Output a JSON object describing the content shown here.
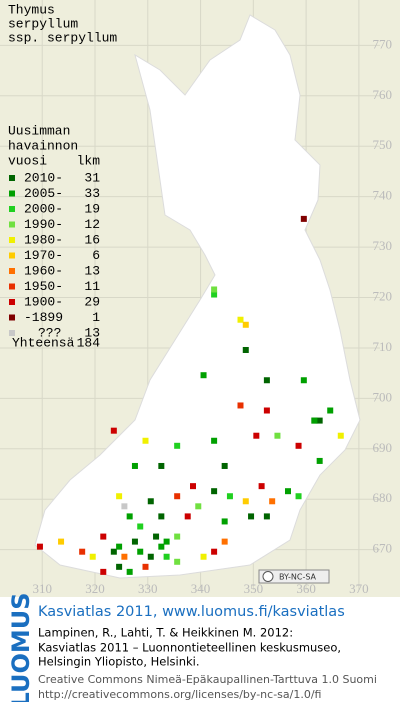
{
  "map": {
    "title": [
      "Thymus",
      "serpyllum",
      "ssp. serpyllum"
    ],
    "xlim": [
      302,
      374
    ],
    "ylim": [
      662,
      779
    ],
    "xticks": [
      310,
      320,
      330,
      340,
      350,
      360,
      370
    ],
    "yticks": [
      770,
      760,
      750,
      740,
      730,
      720,
      710,
      700,
      690,
      680,
      670
    ],
    "legend": {
      "heading": [
        "Uusimman",
        "havainnon",
        "vuosi"
      ],
      "count_heading": "lkm",
      "entries": [
        {
          "label": "2010-",
          "count": 31,
          "color": "#006400",
          "squares": [
            [
              348,
              709
            ],
            [
              352,
              703
            ],
            [
              361,
              695
            ],
            [
              362,
              695
            ],
            [
              332,
              686
            ],
            [
              344,
              686
            ],
            [
              342,
              681
            ],
            [
              330,
              679
            ],
            [
              332,
              676
            ],
            [
              349,
              676
            ],
            [
              352,
              676
            ],
            [
              331,
              672
            ],
            [
              323,
              669
            ],
            [
              330,
              668
            ],
            [
              324,
              666
            ],
            [
              327,
              671
            ]
          ]
        },
        {
          "label": "2005-",
          "count": 33,
          "color": "#00a000",
          "squares": [
            [
              340,
              704
            ],
            [
              359,
              703
            ],
            [
              364,
              697
            ],
            [
              361,
              695
            ],
            [
              342,
              691
            ],
            [
              362,
              687
            ],
            [
              327,
              686
            ],
            [
              356,
              681
            ],
            [
              326,
              676
            ],
            [
              344,
              675
            ],
            [
              333,
              671
            ],
            [
              328,
              669
            ],
            [
              326,
              665
            ],
            [
              324,
              670
            ],
            [
              332,
              670
            ]
          ]
        },
        {
          "label": "2000-",
          "count": 19,
          "color": "#20d020",
          "squares": [
            [
              342,
              720
            ],
            [
              335,
              690
            ],
            [
              345,
              680
            ],
            [
              358,
              680
            ],
            [
              328,
              674
            ],
            [
              333,
              668
            ]
          ]
        },
        {
          "label": "1990-",
          "count": 12,
          "color": "#70e040",
          "squares": [
            [
              342,
              721
            ],
            [
              354,
              692
            ],
            [
              339,
              678
            ],
            [
              335,
              672
            ],
            [
              335,
              667
            ]
          ]
        },
        {
          "label": "1980-",
          "count": 16,
          "color": "#f0f000",
          "squares": [
            [
              347,
              715
            ],
            [
              366,
              692
            ],
            [
              329,
              691
            ],
            [
              324,
              680
            ],
            [
              319,
              668
            ],
            [
              340,
              668
            ]
          ]
        },
        {
          "label": "1970-",
          "count": 6,
          "color": "#ffcc00",
          "squares": [
            [
              348,
              714
            ],
            [
              348,
              679
            ],
            [
              313,
              671
            ]
          ]
        },
        {
          "label": "1960-",
          "count": 13,
          "color": "#ff7000",
          "squares": [
            [
              353,
              679
            ],
            [
              325,
              668
            ],
            [
              344,
              671
            ]
          ]
        },
        {
          "label": "1950-",
          "count": 11,
          "color": "#e83000",
          "squares": [
            [
              347,
              698
            ],
            [
              335,
              680
            ],
            [
              317,
              669
            ],
            [
              329,
              666
            ]
          ]
        },
        {
          "label": "1900-",
          "count": 29,
          "color": "#cc0000",
          "squares": [
            [
              352,
              697
            ],
            [
              323,
              693
            ],
            [
              350,
              692
            ],
            [
              358,
              690
            ],
            [
              338,
              682
            ],
            [
              351,
              682
            ],
            [
              337,
              676
            ],
            [
              321,
              672
            ],
            [
              309,
              670
            ],
            [
              321,
              665
            ],
            [
              342,
              669
            ]
          ]
        },
        {
          "label": "-1899",
          "count": 1,
          "color": "#800000",
          "squares": [
            [
              359,
              735
            ]
          ]
        },
        {
          "label": "???",
          "count": 13,
          "color": "#c8c8c8",
          "squares": [
            [
              325,
              678
            ]
          ]
        }
      ],
      "total_label": "Yhteensä",
      "total": 184
    },
    "license_badge": "BY-NC-SA"
  },
  "footer": {
    "brand": "LUOMUS",
    "heading": "Kasviatlas 2011, www.luomus.fi/kasviatlas",
    "citation": [
      "Lampinen, R., Lahti, T. & Heikkinen M. 2012:",
      "Kasviatlas 2011 – Luonnontieteellinen keskusmuseo,",
      "Helsingin Yliopisto, Helsinki."
    ],
    "license": [
      "Creative Commons Nimeä-Epäkaupallinen-Tarttuva 1.0 Suomi",
      "http://creativecommons.org/licenses/by-nc-sa/1.0/fi"
    ]
  }
}
